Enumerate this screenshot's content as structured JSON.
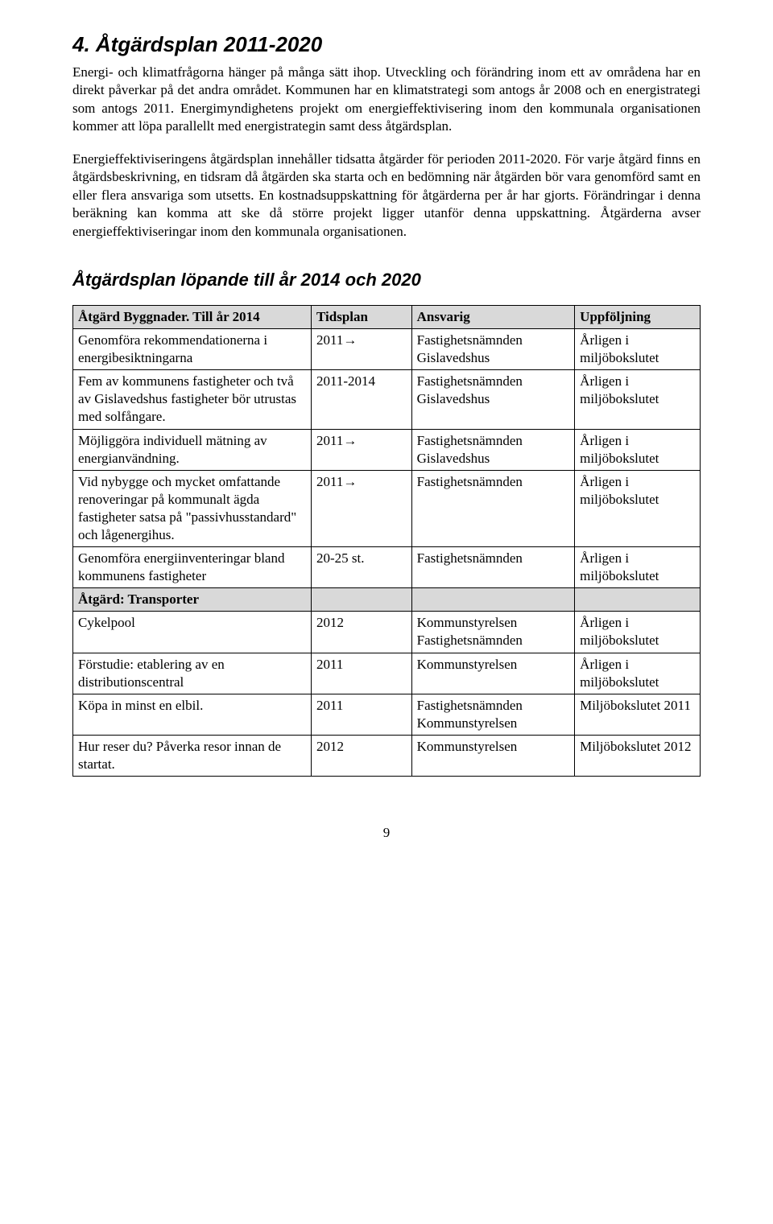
{
  "heading": "4. Åtgärdsplan 2011-2020",
  "para1": "Energi- och klimatfrågorna hänger på många sätt ihop. Utveckling och förändring inom ett av områdena har en direkt påverkar på det andra området. Kommunen har en klimatstrategi som antogs år 2008 och en energistrategi som antogs 2011. Energimyndighetens projekt om energieffektivisering inom den kommunala organisationen kommer att löpa parallellt med energistrategin samt dess åtgärdsplan.",
  "para2": "Energieffektiviseringens åtgärdsplan innehåller tidsatta åtgärder för perioden 2011-2020. För varje åtgärd finns en åtgärdsbeskrivning, en tidsram då åtgärden ska starta och en bedömning när åtgärden bör vara genomförd samt en eller flera ansvariga som utsetts. En kostnadsuppskattning för åtgärderna per år har gjorts. Förändringar i denna beräkning kan komma att ske då större projekt ligger utanför denna uppskattning. Åtgärderna avser energieffektiviseringar inom den kommunala organisationen.",
  "subheading": "Åtgärdsplan löpande till år 2014 och 2020",
  "table": {
    "headers": [
      "Åtgärd Byggnader. Till år 2014",
      "Tidsplan",
      "Ansvarig",
      "Uppföljning"
    ],
    "rows": [
      {
        "c1": "Genomföra rekommendationerna i energibesiktningarna",
        "c2": "2011→",
        "c3": "Fastighetsnämnden Gislavedshus",
        "c4": "Årligen i miljöbokslutet"
      },
      {
        "c1": "Fem av kommunens fastigheter och två av Gislavedshus fastigheter bör utrustas med solfångare.",
        "c2": "2011-2014",
        "c3": "Fastighetsnämnden Gislavedshus",
        "c4": "Årligen i miljöbokslutet"
      },
      {
        "c1": "Möjliggöra individuell mätning av energianvändning.",
        "c2": "2011→",
        "c3": "Fastighetsnämnden Gislavedshus",
        "c4": "Årligen i miljöbokslutet"
      },
      {
        "c1": "Vid nybygge och mycket omfattande renoveringar på kommunalt ägda fastigheter satsa på \"passivhusstandard\" och lågenergihus.",
        "c2": "2011→",
        "c3": "Fastighetsnämnden",
        "c4": "Årligen i miljöbokslutet"
      },
      {
        "c1": "Genomföra energiinventeringar bland kommunens fastigheter",
        "c2": "20-25 st.",
        "c3": "Fastighetsnämnden",
        "c4": "Årligen i miljöbokslutet"
      },
      {
        "section": true,
        "c1": "Åtgärd: Transporter",
        "c2": "",
        "c3": "",
        "c4": ""
      },
      {
        "c1": "Cykelpool",
        "c2": "2012",
        "c3": "Kommunstyrelsen Fastighetsnämnden",
        "c4": "Årligen i miljöbokslutet"
      },
      {
        "c1": "Förstudie: etablering av en distributionscentral",
        "c2": "2011",
        "c3": "Kommunstyrelsen",
        "c4": "Årligen i miljöbokslutet"
      },
      {
        "c1": "Köpa in minst en elbil.",
        "c2": "2011",
        "c3": "Fastighetsnämnden Kommunstyrelsen",
        "c4": "Miljöbokslutet 2011"
      },
      {
        "c1": "Hur reser du? Påverka resor innan de startat.",
        "c2": "2012",
        "c3": "Kommunstyrelsen",
        "c4": "Miljöbokslutet 2012"
      }
    ]
  },
  "page_number": "9"
}
